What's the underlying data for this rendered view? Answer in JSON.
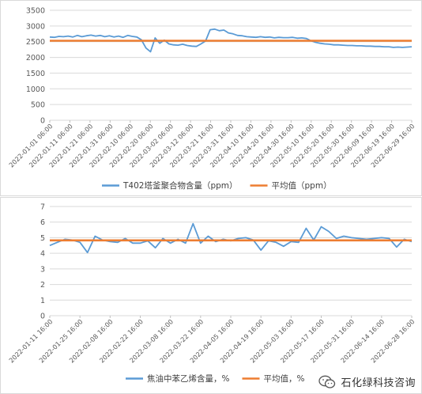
{
  "chart_data": [
    {
      "type": "line",
      "ylim": [
        0,
        3500
      ],
      "yticks": [
        "0",
        "500",
        "1000",
        "1500",
        "2000",
        "2500",
        "3000",
        "3500"
      ],
      "x_labels": [
        "2022-01-01 06:00",
        "2022-01-11 06:00",
        "2022-01-21 06:00",
        "2022-01-31 06:00",
        "2022-02-10 06:00",
        "2022-02-20 06:00",
        "2022-03-02 06:00",
        "2022-03-12 06:00",
        "2022-03-21 16:00",
        "2022-03-31 16:00",
        "2022-04-10 16:00",
        "2022-04-20 16:00",
        "2022-04-30 16:00",
        "2022-05-10 16:00",
        "2022-05-20 16:00",
        "2022-05-30 16:00",
        "2022-06-09 16:00",
        "2022-06-19 16:00",
        "2022-06-29 16:00"
      ],
      "series": [
        {
          "name": "T402塔釜聚合物含量（ppm）",
          "color": "#5B9BD5",
          "values": [
            2650,
            2640,
            2670,
            2660,
            2680,
            2650,
            2700,
            2660,
            2690,
            2710,
            2680,
            2700,
            2660,
            2690,
            2650,
            2680,
            2640,
            2700,
            2670,
            2650,
            2560,
            2300,
            2180,
            2620,
            2450,
            2550,
            2430,
            2400,
            2390,
            2420,
            2380,
            2360,
            2350,
            2430,
            2520,
            2880,
            2900,
            2850,
            2870,
            2780,
            2750,
            2700,
            2690,
            2660,
            2650,
            2640,
            2660,
            2640,
            2650,
            2620,
            2640,
            2630,
            2630,
            2640,
            2610,
            2620,
            2600,
            2530,
            2480,
            2450,
            2430,
            2420,
            2400,
            2400,
            2390,
            2380,
            2380,
            2370,
            2370,
            2360,
            2360,
            2350,
            2350,
            2340,
            2340,
            2320,
            2330,
            2320,
            2330,
            2340
          ]
        },
        {
          "name": "平均值（ppm）",
          "color": "#ED7D31",
          "values": [
            2530,
            2530
          ]
        }
      ]
    },
    {
      "type": "line",
      "ylim": [
        0,
        7
      ],
      "yticks": [
        "0",
        "1",
        "2",
        "3",
        "4",
        "5",
        "6",
        "7"
      ],
      "x_labels": [
        "2022-01-11 16:00",
        "2022-01-25 16:00",
        "2022-02-08 16:00",
        "2022-02-22 16:00",
        "2022-03-08 16:00",
        "2022-03-22 16:00",
        "2022-04-05 16:00",
        "2022-04-19 16:00",
        "2022-05-03 16:00",
        "2022-05-17 16:00",
        "2022-05-31 16:00",
        "2022-06-14 16:00",
        "2022-06-28 16:00"
      ],
      "series": [
        {
          "name": "焦油中苯乙烯含量，%",
          "color": "#5B9BD5",
          "values": [
            4.5,
            4.7,
            4.9,
            4.85,
            4.7,
            4.05,
            5.1,
            4.85,
            4.75,
            4.7,
            4.95,
            4.65,
            4.65,
            4.8,
            4.35,
            4.95,
            4.65,
            4.9,
            4.65,
            5.9,
            4.65,
            5.1,
            4.75,
            4.9,
            4.8,
            4.95,
            5.0,
            4.85,
            4.2,
            4.8,
            4.7,
            4.45,
            4.75,
            4.7,
            5.6,
            4.85,
            5.7,
            5.4,
            4.95,
            5.1,
            5.0,
            4.95,
            4.9,
            4.95,
            5.0,
            4.95,
            4.4,
            4.9,
            4.75
          ]
        },
        {
          "name": "平均值，%",
          "color": "#ED7D31",
          "values": [
            4.83,
            4.83
          ]
        }
      ]
    }
  ],
  "watermark": {
    "text": "石化绿科技咨询",
    "icon": "wechat-icon"
  }
}
